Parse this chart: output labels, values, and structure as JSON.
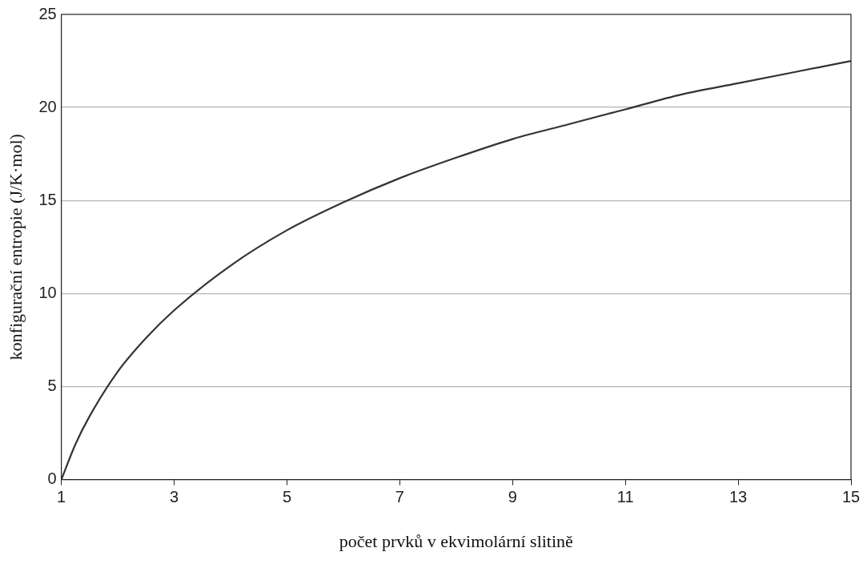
{
  "chart_data": {
    "type": "line",
    "xlabel": "počet prvků v ekvimolární slitině",
    "ylabel": "konfigurační entropie (J/K·mol)",
    "x": [
      1,
      1.25,
      1.5,
      2,
      2.5,
      3,
      4,
      5,
      6,
      7,
      8,
      9,
      10,
      11,
      12,
      13,
      14,
      15
    ],
    "series": [
      {
        "color": "#333333",
        "values": [
          0,
          1.9,
          3.4,
          5.8,
          7.6,
          9.1,
          11.5,
          13.4,
          14.9,
          16.2,
          17.3,
          18.3,
          19.1,
          19.9,
          20.7,
          21.3,
          21.9,
          22.5
        ]
      }
    ],
    "xlim": [
      1,
      15
    ],
    "xticks": [
      1,
      3,
      5,
      7,
      9,
      11,
      13,
      15
    ],
    "ylim": [
      0,
      25
    ],
    "yticks": [
      0,
      5,
      10,
      15,
      20,
      25
    ],
    "grid": "y",
    "legend": false,
    "marker": "none",
    "line_style": "solid"
  }
}
